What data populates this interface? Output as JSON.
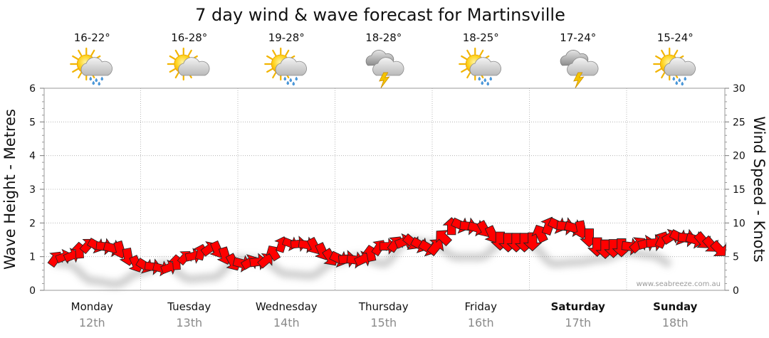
{
  "chart_data": {
    "type": "line",
    "title": "7 day wind & wave forecast for Martinsville",
    "ylabel_left": "Wave Height - Metres",
    "ylabel_right": "Wind Speed - Knots",
    "ylim_left": [
      0,
      6
    ],
    "ylim_right": [
      0,
      30
    ],
    "yticks_left": [
      "0",
      "1",
      "2",
      "3",
      "4",
      "5",
      "6"
    ],
    "yticks_right": [
      "0",
      "5",
      "10",
      "15",
      "20",
      "25",
      "30"
    ],
    "credit": "www.seabreeze.com.au",
    "days": [
      {
        "name": "Monday",
        "date": "12th",
        "temp": "16-22°",
        "icon": "sun-cloud-showers-icon",
        "weekend": false
      },
      {
        "name": "Tuesday",
        "date": "13th",
        "temp": "16-28°",
        "icon": "sun-cloud-icon",
        "weekend": false
      },
      {
        "name": "Wednesday",
        "date": "14th",
        "temp": "19-28°",
        "icon": "sun-cloud-showers-icon",
        "weekend": false
      },
      {
        "name": "Thursday",
        "date": "15th",
        "temp": "18-28°",
        "icon": "storm-cloud-icon",
        "weekend": false
      },
      {
        "name": "Friday",
        "date": "16th",
        "temp": "18-25°",
        "icon": "sun-cloud-showers-icon",
        "weekend": false
      },
      {
        "name": "Saturday",
        "date": "17th",
        "temp": "17-24°",
        "icon": "storm-cloud-icon",
        "weekend": true
      },
      {
        "name": "Sunday",
        "date": "18th",
        "temp": "15-24°",
        "icon": "sun-cloud-showers-icon",
        "weekend": true
      }
    ],
    "wave_series": {
      "name": "Wave height (m)",
      "x_days": [
        0.0,
        0.25,
        0.5,
        0.75,
        1.0,
        1.25,
        1.5,
        1.75,
        2.0,
        2.25,
        2.5,
        2.75,
        3.0,
        3.25,
        3.5,
        3.75,
        4.0,
        4.25,
        4.5,
        4.75,
        5.0,
        5.25,
        5.5,
        5.75,
        6.0,
        6.25,
        6.5,
        6.75,
        7.0
      ],
      "values": [
        0.85,
        1.0,
        1.35,
        1.25,
        0.75,
        0.65,
        1.0,
        1.25,
        0.8,
        0.85,
        1.4,
        1.35,
        0.95,
        0.9,
        1.3,
        1.45,
        1.25,
        1.95,
        1.85,
        1.45,
        1.45,
        1.95,
        1.85,
        1.25,
        1.3,
        1.4,
        1.6,
        1.5,
        1.2
      ]
    },
    "wind_arrows": {
      "name": "Wind speed (knots)",
      "start_day": -0.38,
      "step_days": 0.045,
      "speeds": [
        4,
        3,
        3,
        4,
        4,
        5,
        5,
        6,
        6,
        6,
        5,
        5,
        4,
        3,
        3,
        2,
        2,
        3,
        3,
        4,
        5,
        6,
        6,
        6,
        5,
        5,
        4,
        3,
        3,
        2,
        3,
        4,
        5,
        6,
        7,
        7,
        6,
        5,
        5,
        4,
        4,
        4,
        5,
        5,
        6,
        6,
        7,
        7,
        6,
        6,
        6,
        6,
        5,
        5,
        6,
        8,
        9,
        9,
        9,
        8,
        7,
        7,
        7,
        7,
        7,
        7,
        8,
        9,
        9,
        8,
        8,
        6,
        6,
        5,
        5,
        5,
        5,
        6,
        7,
        7,
        7,
        6,
        6,
        5
      ]
    }
  }
}
